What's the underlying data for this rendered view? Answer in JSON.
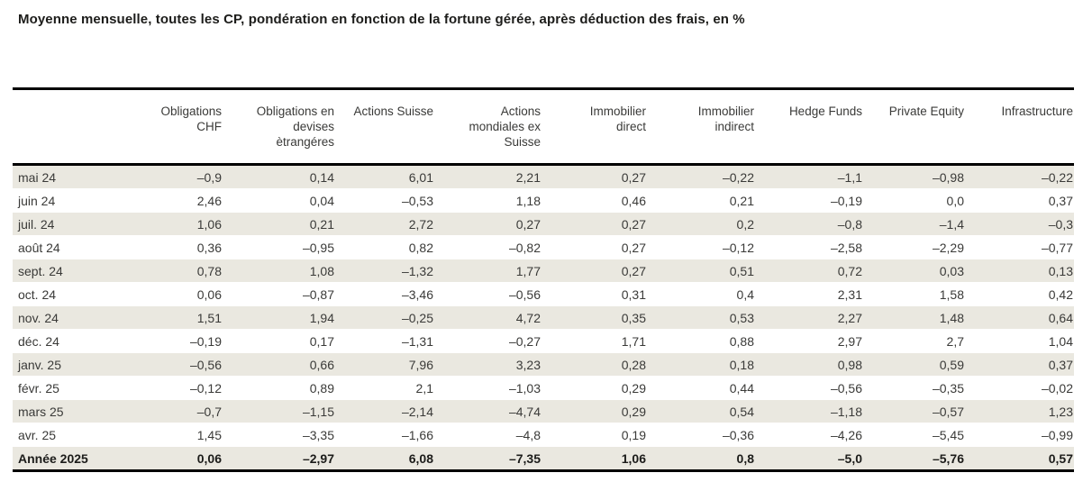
{
  "title": "Moyenne mensuelle, toutes les CP, pondération en fonction de la fortune gérée, après déduction des frais, en %",
  "colors": {
    "stripe": "#eae8e0",
    "text": "#3a3a38",
    "rule": "#000000"
  },
  "table": {
    "columns": [
      "Obligations\nCHF",
      "Obligations en\ndevises\nètrangéres",
      "Actions Suisse",
      "Actions\nmondiales ex\nSuisse",
      "Immobilier\ndirect",
      "Immobilier\nindirect",
      "Hedge Funds",
      "Private Equity",
      "Infrastructure"
    ],
    "rows": [
      {
        "label": "mai 24",
        "bold": false,
        "values": [
          "–0,9",
          "0,14",
          "6,01",
          "2,21",
          "0,27",
          "–0,22",
          "–1,1",
          "–0,98",
          "–0,22"
        ]
      },
      {
        "label": "juin 24",
        "bold": false,
        "values": [
          "2,46",
          "0,04",
          "–0,53",
          "1,18",
          "0,46",
          "0,21",
          "–0,19",
          "0,0",
          "0,37"
        ]
      },
      {
        "label": "juil. 24",
        "bold": false,
        "values": [
          "1,06",
          "0,21",
          "2,72",
          "0,27",
          "0,27",
          "0,2",
          "–0,8",
          "–1,4",
          "–0,3"
        ]
      },
      {
        "label": "août 24",
        "bold": false,
        "values": [
          "0,36",
          "–0,95",
          "0,82",
          "–0,82",
          "0,27",
          "–0,12",
          "–2,58",
          "–2,29",
          "–0,77"
        ]
      },
      {
        "label": "sept. 24",
        "bold": false,
        "values": [
          "0,78",
          "1,08",
          "–1,32",
          "1,77",
          "0,27",
          "0,51",
          "0,72",
          "0,03",
          "0,13"
        ]
      },
      {
        "label": "oct. 24",
        "bold": false,
        "values": [
          "0,06",
          "–0,87",
          "–3,46",
          "–0,56",
          "0,31",
          "0,4",
          "2,31",
          "1,58",
          "0,42"
        ]
      },
      {
        "label": "nov. 24",
        "bold": false,
        "values": [
          "1,51",
          "1,94",
          "–0,25",
          "4,72",
          "0,35",
          "0,53",
          "2,27",
          "1,48",
          "0,64"
        ]
      },
      {
        "label": "déc. 24",
        "bold": false,
        "values": [
          "–0,19",
          "0,17",
          "–1,31",
          "–0,27",
          "1,71",
          "0,88",
          "2,97",
          "2,7",
          "1,04"
        ]
      },
      {
        "label": "janv. 25",
        "bold": false,
        "values": [
          "–0,56",
          "0,66",
          "7,96",
          "3,23",
          "0,28",
          "0,18",
          "0,98",
          "0,59",
          "0,37"
        ]
      },
      {
        "label": "févr. 25",
        "bold": false,
        "values": [
          "–0,12",
          "0,89",
          "2,1",
          "–1,03",
          "0,29",
          "0,44",
          "–0,56",
          "–0,35",
          "–0,02"
        ]
      },
      {
        "label": "mars 25",
        "bold": false,
        "values": [
          "–0,7",
          "–1,15",
          "–2,14",
          "–4,74",
          "0,29",
          "0,54",
          "–1,18",
          "–0,57",
          "1,23"
        ]
      },
      {
        "label": "avr. 25",
        "bold": false,
        "values": [
          "1,45",
          "–3,35",
          "–1,66",
          "–4,8",
          "0,19",
          "–0,36",
          "–4,26",
          "–5,45",
          "–0,99"
        ]
      },
      {
        "label": "Année 2025",
        "bold": true,
        "values": [
          "0,06",
          "–2,97",
          "6,08",
          "–7,35",
          "1,06",
          "0,8",
          "–5,0",
          "–5,76",
          "0,57"
        ]
      }
    ]
  }
}
